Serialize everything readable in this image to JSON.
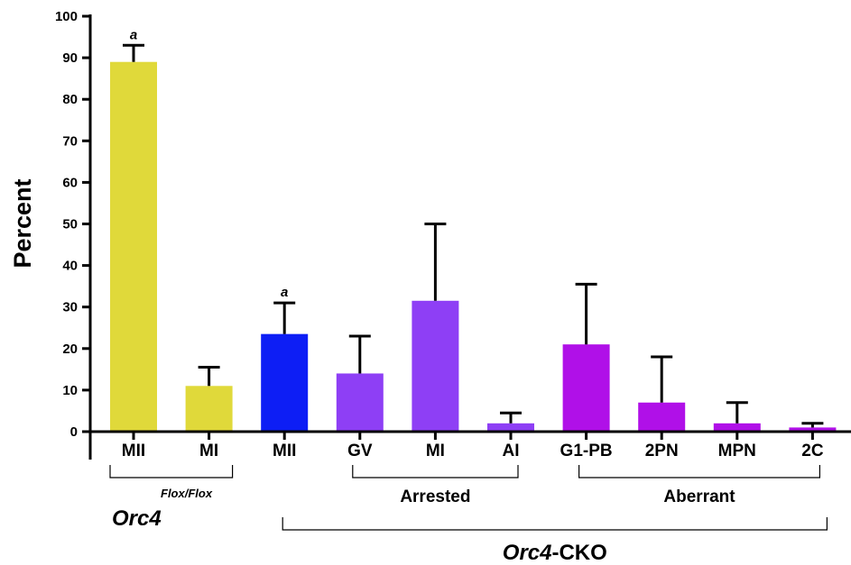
{
  "chart_data": {
    "type": "bar",
    "ylabel": "Percent",
    "ylim": [
      0,
      100
    ],
    "yticks": [
      0,
      10,
      20,
      30,
      40,
      50,
      60,
      70,
      80,
      90,
      100
    ],
    "categories": [
      "MII",
      "MI",
      "MII",
      "GV",
      "MI",
      "AI",
      "G1-PB",
      "2PN",
      "MPN",
      "2C"
    ],
    "values": [
      89,
      11,
      23.5,
      14,
      31.5,
      2,
      21,
      7,
      2,
      1
    ],
    "errors": [
      4,
      4.5,
      7.5,
      9,
      18.5,
      2.5,
      14.5,
      11,
      5,
      1
    ],
    "colors": [
      "#e0d93a",
      "#e0d93a",
      "#0d1ef5",
      "#8e3ff5",
      "#8e3ff5",
      "#8e3ff5",
      "#b010e8",
      "#b010e8",
      "#b010e8",
      "#b010e8"
    ],
    "significance": [
      {
        "index": 0,
        "label": "a"
      },
      {
        "index": 2,
        "label": "a"
      }
    ],
    "groups": [
      {
        "label": "Arrested",
        "start": 3,
        "end": 5
      },
      {
        "label": "Aberrant",
        "start": 6,
        "end": 9
      }
    ],
    "genotypes": [
      {
        "label": "Orc4",
        "superscript": "Flox/Flox",
        "start": 0,
        "end": 1
      },
      {
        "label": "Orc4",
        "suffix": "-CKO",
        "start": 2,
        "end": 9
      }
    ]
  }
}
